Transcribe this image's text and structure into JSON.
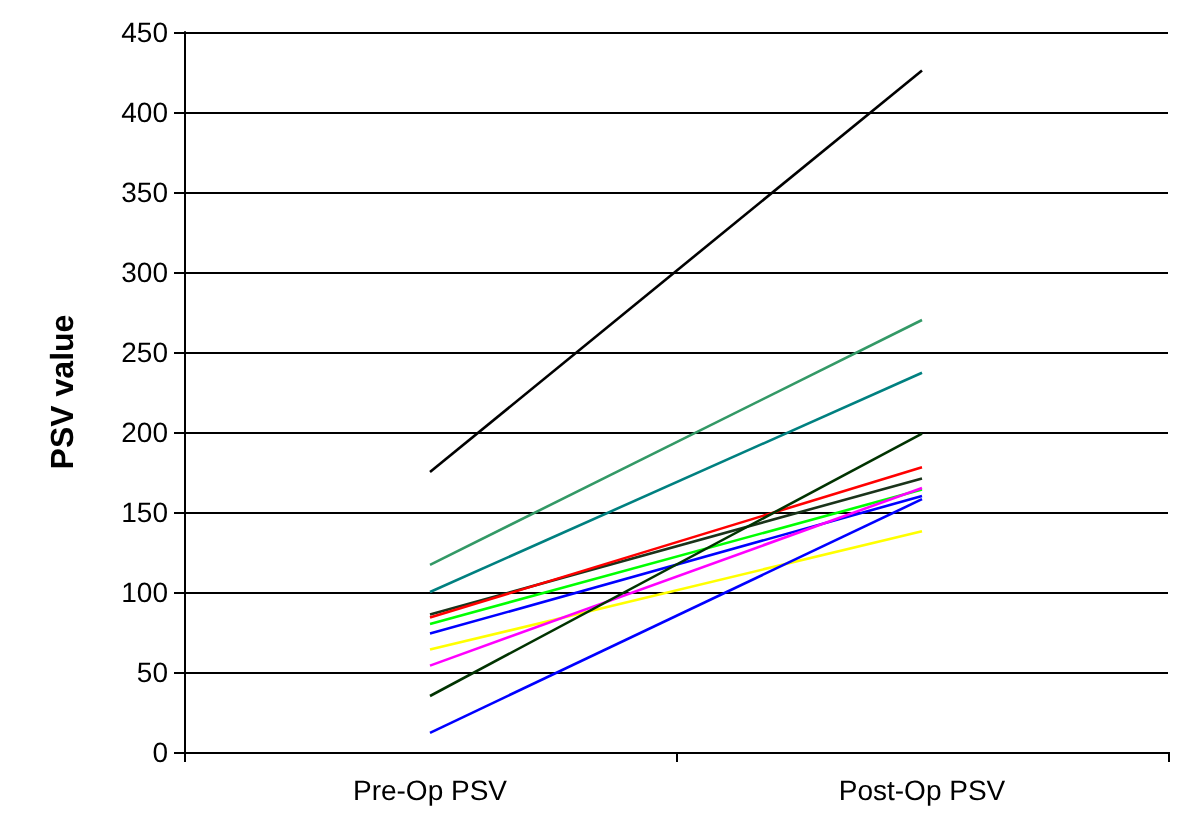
{
  "chart_data": {
    "type": "line",
    "ylabel": "PSV value",
    "categories": [
      "Pre-Op PSV",
      "Post-Op PSV"
    ],
    "series": [
      {
        "color": "#000000",
        "values": [
          175,
          426
        ]
      },
      {
        "color": "#339966",
        "values": [
          117,
          270
        ]
      },
      {
        "color": "#008080",
        "values": [
          100,
          237
        ]
      },
      {
        "color": "#1a331a",
        "values": [
          86,
          171
        ]
      },
      {
        "color": "#ff0000",
        "values": [
          84,
          178
        ]
      },
      {
        "color": "#00ff00",
        "values": [
          80,
          164
        ]
      },
      {
        "color": "#0000ff",
        "values": [
          74,
          160
        ]
      },
      {
        "color": "#ffff00",
        "values": [
          64,
          138
        ]
      },
      {
        "color": "#ff00ff",
        "values": [
          54,
          165
        ]
      },
      {
        "color": "#003300",
        "values": [
          35,
          199
        ]
      },
      {
        "color": "#0000ff",
        "values": [
          12,
          158
        ]
      }
    ],
    "ylim": [
      0,
      450
    ],
    "yticks": [
      0,
      50,
      100,
      150,
      200,
      250,
      300,
      350,
      400,
      450
    ],
    "grid": "y",
    "marker": "none"
  }
}
